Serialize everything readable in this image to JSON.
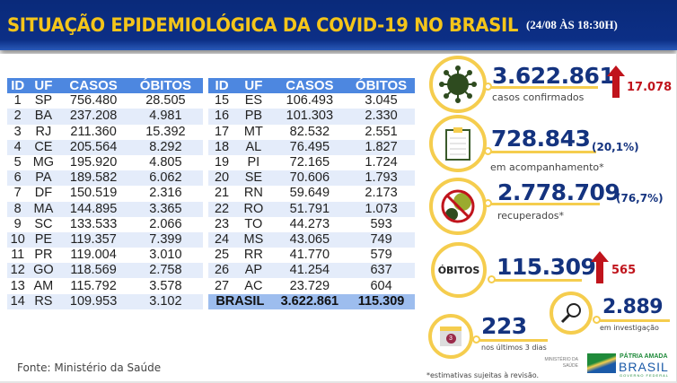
{
  "header": {
    "title": "SITUAÇÃO EPIDEMIOLÓGICA DA COVID-19 NO BRASIL",
    "date": "(24/08 ÀS 18:30H)"
  },
  "table": {
    "columns": [
      "ID",
      "UF",
      "CASOS",
      "ÓBITOS"
    ],
    "left": [
      [
        "1",
        "SP",
        "756.480",
        "28.505"
      ],
      [
        "2",
        "BA",
        "237.208",
        "4.981"
      ],
      [
        "3",
        "RJ",
        "211.360",
        "15.392"
      ],
      [
        "4",
        "CE",
        "205.564",
        "8.292"
      ],
      [
        "5",
        "MG",
        "195.920",
        "4.805"
      ],
      [
        "6",
        "PA",
        "189.582",
        "6.062"
      ],
      [
        "7",
        "DF",
        "150.519",
        "2.316"
      ],
      [
        "8",
        "MA",
        "144.895",
        "3.365"
      ],
      [
        "9",
        "SC",
        "133.533",
        "2.066"
      ],
      [
        "10",
        "PE",
        "119.357",
        "7.399"
      ],
      [
        "11",
        "PR",
        "119.004",
        "3.010"
      ],
      [
        "12",
        "GO",
        "118.569",
        "2.758"
      ],
      [
        "13",
        "AM",
        "115.792",
        "3.578"
      ],
      [
        "14",
        "RS",
        "109.953",
        "3.102"
      ]
    ],
    "right": [
      [
        "15",
        "ES",
        "106.493",
        "3.045"
      ],
      [
        "16",
        "PB",
        "101.303",
        "2.330"
      ],
      [
        "17",
        "MT",
        "82.532",
        "2.551"
      ],
      [
        "18",
        "AL",
        "76.495",
        "1.827"
      ],
      [
        "19",
        "PI",
        "72.165",
        "1.724"
      ],
      [
        "20",
        "SE",
        "70.606",
        "1.793"
      ],
      [
        "21",
        "RN",
        "59.649",
        "2.173"
      ],
      [
        "22",
        "RO",
        "51.791",
        "1.073"
      ],
      [
        "23",
        "TO",
        "44.273",
        "593"
      ],
      [
        "24",
        "MS",
        "43.065",
        "749"
      ],
      [
        "25",
        "RR",
        "41.770",
        "579"
      ],
      [
        "26",
        "AP",
        "41.254",
        "637"
      ],
      [
        "27",
        "AC",
        "23.729",
        "604"
      ]
    ],
    "total": {
      "label": "BRASIL",
      "casos": "3.622.861",
      "obitos": "115.309"
    }
  },
  "source": "Fonte: Ministério da Saúde",
  "stats": {
    "confirmed": {
      "value": "3.622.861",
      "label": "casos confirmados",
      "delta": "17.078"
    },
    "monitoring": {
      "value": "728.843",
      "pct": "(20,1%)",
      "label": "em acompanhamento*"
    },
    "recovered": {
      "value": "2.778.709",
      "pct": "(76,7%)",
      "label": "recuperados*"
    },
    "deaths": {
      "badge": "ÓBITOS",
      "value": "115.309",
      "delta": "565"
    },
    "investigation": {
      "value": "2.889",
      "label": "em investigação"
    },
    "last3": {
      "value": "223",
      "label": "nos últimos 3 dias",
      "calendar_day": "3"
    }
  },
  "footnote": "*estimativas sujeitas à revisão.",
  "logos": {
    "ministry": "MINISTÉRIO DA SAÚDE",
    "gov": "PÁTRIA AMADA",
    "gov2": "BRASIL",
    "gov3": "GOVERNO FEDERAL"
  },
  "colors": {
    "header": "#0c2f86",
    "title": "#f4c51a",
    "accent": "#f5cd4e",
    "number": "#14337f",
    "up": "#c0141c",
    "table_header": "#4d87e0"
  }
}
